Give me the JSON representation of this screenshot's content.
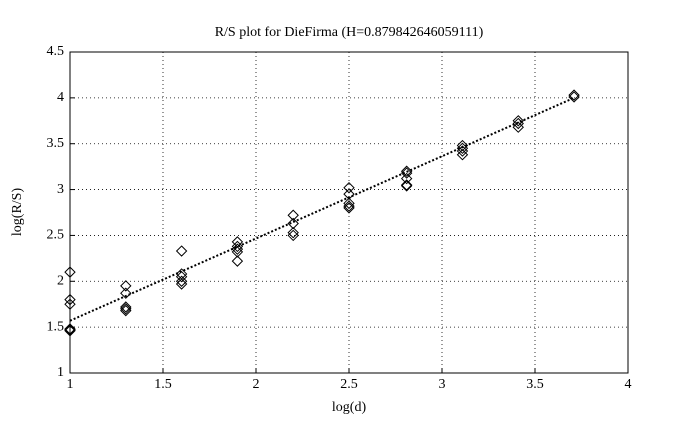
{
  "chart_data": {
    "type": "scatter",
    "title": "R/S plot for DieFirma (H=0.879842646059111)",
    "xlabel": "log(d)",
    "ylabel": "log(R/S)",
    "xlim": [
      1,
      4
    ],
    "ylim": [
      1,
      4.5
    ],
    "xticks": [
      1,
      1.5,
      2,
      2.5,
      3,
      3.5,
      4
    ],
    "yticks": [
      1,
      1.5,
      2,
      2.5,
      3,
      3.5,
      4,
      4.5
    ],
    "grid": true,
    "series": [
      {
        "mode": "markers",
        "color": "#000000",
        "x": [
          1,
          1,
          1,
          1,
          1,
          1,
          1.3,
          1.3,
          1.3,
          1.3,
          1.3,
          1.6,
          1.6,
          1.6,
          1.6,
          1.6,
          1.9,
          1.9,
          1.9,
          1.9,
          1.9,
          2.2,
          2.2,
          2.2,
          2.2,
          2.5,
          2.5,
          2.5,
          2.5,
          2.5,
          2.81,
          2.81,
          2.81,
          2.81,
          2.81,
          3.11,
          3.11,
          3.11,
          3.11,
          3.41,
          3.41,
          3.41,
          3.71,
          3.71
        ],
        "values": [
          2.1,
          1.8,
          1.75,
          1.48,
          1.47,
          1.46,
          1.95,
          1.87,
          1.72,
          1.7,
          1.68,
          2.33,
          2.08,
          2.05,
          2.0,
          1.97,
          2.43,
          2.38,
          2.35,
          2.32,
          2.22,
          2.72,
          2.63,
          2.53,
          2.5,
          3.02,
          2.95,
          2.85,
          2.82,
          2.8,
          3.2,
          3.18,
          3.12,
          3.05,
          3.04,
          3.48,
          3.45,
          3.42,
          3.38,
          3.75,
          3.72,
          3.68,
          4.03,
          4.01
        ]
      },
      {
        "mode": "line",
        "color": "#000000",
        "x": [
          1,
          3.71
        ],
        "values": [
          1.57,
          4.0
        ]
      }
    ]
  }
}
